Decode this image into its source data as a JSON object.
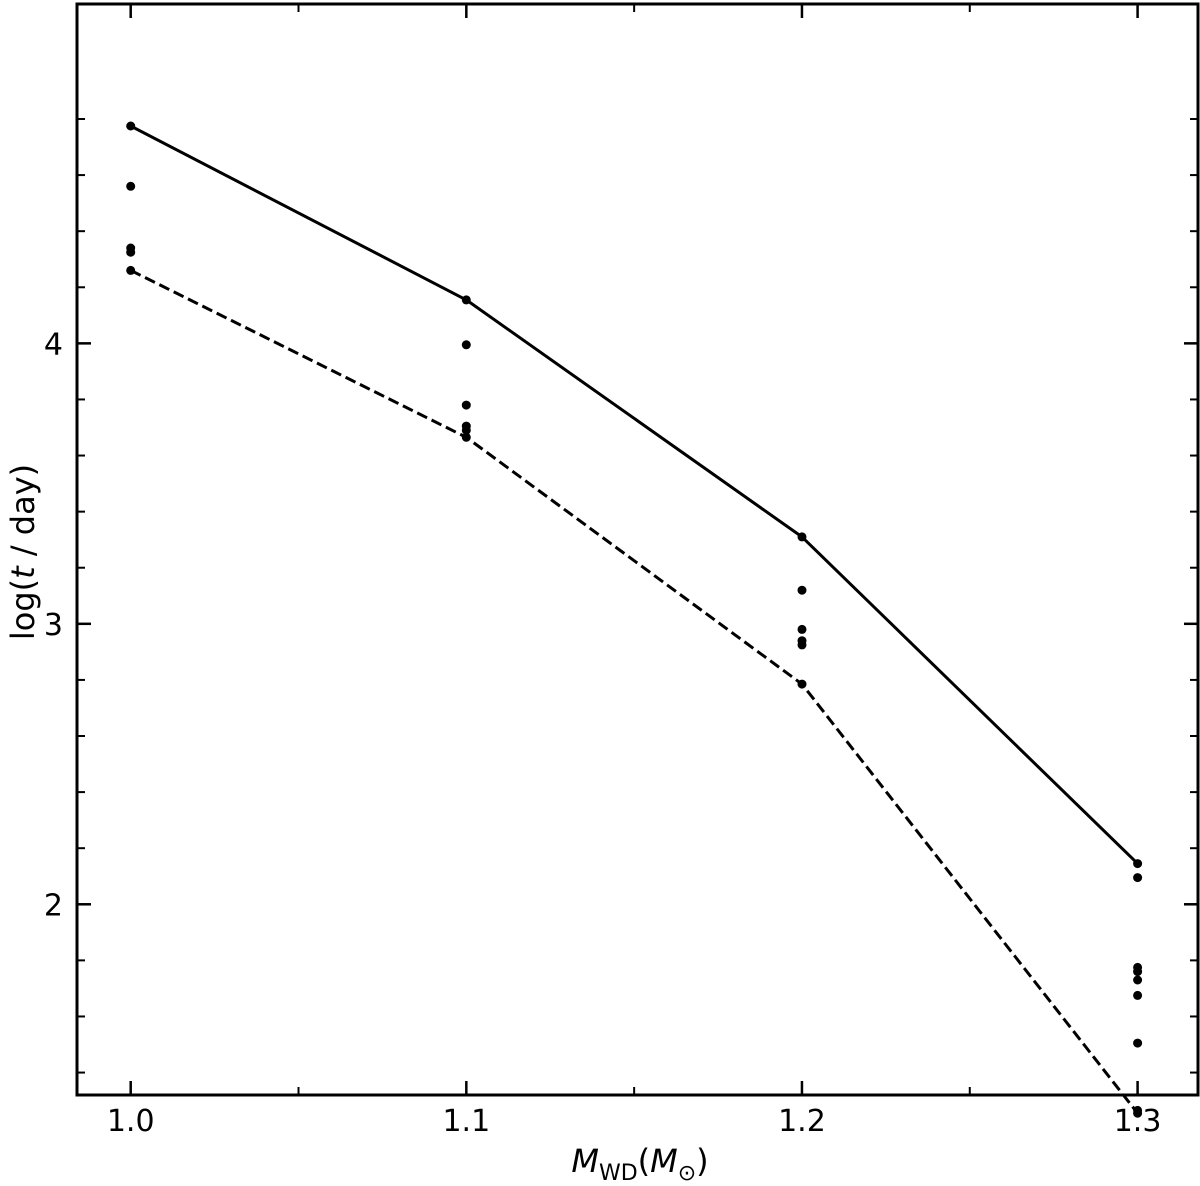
{
  "chart_data": {
    "type": "line",
    "title": "",
    "xlabel": {
      "main": "M",
      "sub": "WD",
      "paren_open": "(",
      "paren_main": "M",
      "paren_sub": "⊙",
      "paren_close": ")"
    },
    "ylabel": {
      "prefix": "log(",
      "var": "t",
      "suffix": " / day)"
    },
    "xlim": [
      0.984,
      1.318
    ],
    "ylim": [
      1.32,
      5.21
    ],
    "xticks": [
      1.0,
      1.1,
      1.2,
      1.3
    ],
    "xtick_labels": [
      "1.0",
      "1.1",
      "1.2",
      "1.3"
    ],
    "xminor": [
      1.05,
      1.15,
      1.25
    ],
    "yticks": [
      2,
      3,
      4
    ],
    "ytick_labels": [
      "2",
      "3",
      "4"
    ],
    "yminor": [
      1.4,
      1.6,
      1.8,
      2.2,
      2.4,
      2.6,
      2.8,
      3.2,
      3.4,
      3.6,
      3.8,
      4.2,
      4.4,
      4.6,
      4.8
    ],
    "grid": false,
    "series": [
      {
        "style": "solid",
        "x": [
          1.0,
          1.1,
          1.2,
          1.3
        ],
        "y": [
          4.775,
          4.155,
          3.31,
          2.145
        ]
      },
      {
        "style": "dashed",
        "x": [
          1.0,
          1.1,
          1.2,
          1.3
        ],
        "y": [
          4.26,
          3.665,
          2.785,
          1.255
        ]
      }
    ],
    "points": [
      {
        "x": 1.0,
        "y": 4.775
      },
      {
        "x": 1.0,
        "y": 4.56
      },
      {
        "x": 1.0,
        "y": 4.34
      },
      {
        "x": 1.0,
        "y": 4.325
      },
      {
        "x": 1.0,
        "y": 4.26
      },
      {
        "x": 1.1,
        "y": 4.155
      },
      {
        "x": 1.1,
        "y": 3.995
      },
      {
        "x": 1.1,
        "y": 3.78
      },
      {
        "x": 1.1,
        "y": 3.705
      },
      {
        "x": 1.1,
        "y": 3.69
      },
      {
        "x": 1.1,
        "y": 3.665
      },
      {
        "x": 1.2,
        "y": 3.31
      },
      {
        "x": 1.2,
        "y": 3.12
      },
      {
        "x": 1.2,
        "y": 2.98
      },
      {
        "x": 1.2,
        "y": 2.94
      },
      {
        "x": 1.2,
        "y": 2.925
      },
      {
        "x": 1.2,
        "y": 2.785
      },
      {
        "x": 1.3,
        "y": 2.145
      },
      {
        "x": 1.3,
        "y": 2.095
      },
      {
        "x": 1.3,
        "y": 1.775
      },
      {
        "x": 1.3,
        "y": 1.76
      },
      {
        "x": 1.3,
        "y": 1.73
      },
      {
        "x": 1.3,
        "y": 1.675
      },
      {
        "x": 1.3,
        "y": 1.505
      },
      {
        "x": 1.3,
        "y": 1.265
      },
      {
        "x": 1.3,
        "y": 1.255
      }
    ],
    "colors": {
      "line": "#000000",
      "point": "#000000",
      "background": "#ffffff"
    }
  }
}
